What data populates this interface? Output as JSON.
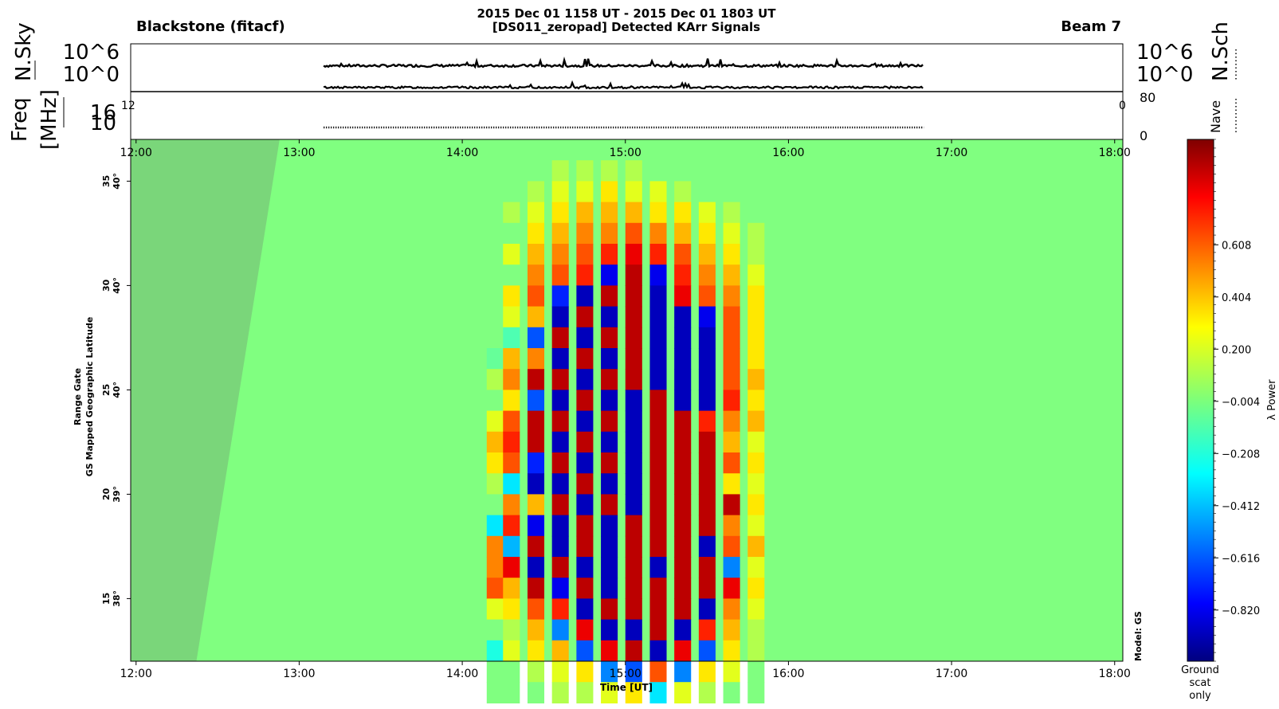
{
  "header": {
    "station": "Blackstone  (fitacf)",
    "title_line1": "2015 Dec 01 1158 UT - 2015 Dec 01 1803 UT",
    "title_line2": "[DS011_zeropad] Detected KArr Signals",
    "beam": "Beam 7"
  },
  "top_panel": {
    "left_label_a": "N.Sky",
    "left_label_b": "Freq",
    "left_label_c": "[MHz]",
    "left_ticks": [
      "10^6",
      "10^0"
    ],
    "right_ticks": [
      "10^6",
      "10^0"
    ],
    "right_label": "N.Sch",
    "freq_ticks": [
      "16",
      "10"
    ],
    "nave_label": "Nave",
    "nave_ticks": [
      "80",
      "0"
    ],
    "clip_left": "12",
    "clip_right": "0"
  },
  "main_panel": {
    "ylabel_line1": "Range Gate",
    "ylabel_line2": "GS Mapped Geographic Latitude",
    "xlabel": "Time [UT]",
    "model_label": "Model: GS",
    "ground_scat_label": [
      "Ground",
      "scat",
      "only"
    ]
  },
  "colorbar": {
    "label": "λ Power",
    "ticks": [
      0.608,
      0.404,
      0.2,
      -0.004,
      -0.208,
      -0.412,
      -0.616,
      -0.82
    ],
    "tick_labels": [
      "0.608",
      "0.404",
      "0.200",
      "−0.004",
      "−0.208",
      "−0.412",
      "−0.616",
      "−0.820"
    ],
    "range": [
      -1.02,
      1.02
    ]
  },
  "chart_data": {
    "type": "heatmap",
    "x_tick_labels": [
      "12:00",
      "13:00",
      "14:00",
      "15:00",
      "16:00",
      "17:00",
      "18:00"
    ],
    "x_ticks_hours": [
      12,
      13,
      14,
      15,
      16,
      17,
      18
    ],
    "xlim_hours": [
      11.967,
      18.05
    ],
    "y_ticks": [
      {
        "gate": 35,
        "lat": "40°"
      },
      {
        "gate": 30,
        "lat": "40°"
      },
      {
        "gate": 25,
        "lat": "40°"
      },
      {
        "gate": 20,
        "lat": "39°"
      },
      {
        "gate": 15,
        "lat": "38°"
      }
    ],
    "ylim_gates": [
      12.0,
      37.0
    ],
    "signal_columns": [
      {
        "t": 14.2,
        "values": [
          0,
          0,
          0,
          0,
          0,
          0,
          0,
          0,
          0,
          -0.05,
          0.1,
          0,
          0.2,
          0.4,
          0.3,
          0.1,
          0,
          -0.3,
          0.5,
          0.5,
          0.6,
          0.2,
          0,
          -0.2,
          0,
          0
        ]
      },
      {
        "t": 14.3,
        "values": [
          0,
          0,
          0.1,
          0,
          0.2,
          0,
          0.3,
          0.2,
          -0.1,
          0.4,
          0.5,
          0.3,
          0.6,
          0.7,
          0.6,
          -0.3,
          0.5,
          0.7,
          -0.4,
          0.8,
          0.4,
          0.3,
          0.1,
          0.2,
          0,
          0
        ]
      },
      {
        "t": 14.45,
        "values": [
          0,
          0.1,
          0.2,
          0.3,
          0.4,
          0.5,
          0.6,
          0.4,
          -0.6,
          0.5,
          0.9,
          -0.6,
          0.9,
          0.9,
          -0.7,
          -0.9,
          0.4,
          -0.8,
          0.9,
          -0.9,
          0.9,
          0.6,
          0.4,
          0.3,
          0.1,
          0
        ]
      },
      {
        "t": 14.6,
        "values": [
          0.1,
          0.2,
          0.3,
          0.4,
          0.5,
          0.6,
          -0.7,
          -0.9,
          0.9,
          -0.9,
          0.9,
          -0.9,
          0.9,
          -0.9,
          0.9,
          -0.9,
          0.9,
          -0.9,
          -0.9,
          0.9,
          -0.8,
          0.7,
          -0.5,
          0.4,
          0.2,
          0.1
        ]
      },
      {
        "t": 14.75,
        "values": [
          0.1,
          0.2,
          0.4,
          0.5,
          0.6,
          0.7,
          -0.9,
          0.9,
          -0.9,
          0.9,
          -0.9,
          0.9,
          -0.9,
          0.9,
          -0.9,
          0.9,
          -0.9,
          0.9,
          0.9,
          -0.9,
          0.9,
          -0.9,
          0.8,
          -0.6,
          0.3,
          0.1
        ]
      },
      {
        "t": 14.9,
        "values": [
          0.1,
          0.3,
          0.4,
          0.5,
          0.7,
          -0.8,
          0.9,
          -0.9,
          0.9,
          -0.9,
          0.9,
          -0.9,
          0.9,
          -0.9,
          0.9,
          -0.9,
          0.9,
          -0.9,
          -0.9,
          -0.9,
          -0.9,
          0.9,
          -0.9,
          0.8,
          -0.5,
          0.2
        ]
      },
      {
        "t": 15.05,
        "values": [
          0.1,
          0.2,
          0.4,
          0.6,
          0.8,
          0.9,
          0.9,
          0.9,
          0.9,
          0.9,
          0.9,
          -0.9,
          -0.9,
          -0.9,
          -0.9,
          -0.9,
          -0.9,
          0.9,
          0.9,
          0.9,
          0.9,
          0.9,
          -0.9,
          0.9,
          -0.6,
          0.3
        ]
      },
      {
        "t": 15.2,
        "values": [
          0,
          0.2,
          0.3,
          0.5,
          0.7,
          -0.8,
          -0.9,
          -0.9,
          -0.9,
          -0.9,
          -0.9,
          0.9,
          0.9,
          0.9,
          0.9,
          0.9,
          0.9,
          0.9,
          0.9,
          -0.9,
          0.9,
          0.9,
          0.9,
          -0.9,
          0.6,
          -0.3
        ]
      },
      {
        "t": 15.35,
        "values": [
          0,
          0.1,
          0.3,
          0.4,
          0.6,
          0.7,
          0.8,
          -0.9,
          -0.9,
          -0.9,
          -0.9,
          -0.9,
          0.9,
          0.9,
          0.9,
          0.9,
          0.9,
          0.9,
          0.9,
          0.9,
          0.9,
          0.9,
          -0.9,
          0.8,
          -0.5,
          0.2
        ]
      },
      {
        "t": 15.5,
        "values": [
          0,
          0,
          0.2,
          0.3,
          0.4,
          0.5,
          0.6,
          -0.8,
          -0.9,
          -0.9,
          -0.9,
          -0.9,
          0.7,
          0.9,
          0.9,
          0.9,
          0.9,
          0.9,
          -0.9,
          0.9,
          0.9,
          -0.9,
          0.7,
          -0.6,
          0.3,
          0.1
        ]
      },
      {
        "t": 15.65,
        "values": [
          0,
          0,
          0.1,
          0.2,
          0.3,
          0.4,
          0.5,
          0.6,
          0.6,
          0.6,
          0.6,
          0.7,
          0.5,
          0.4,
          0.6,
          0.3,
          0.9,
          0.5,
          0.6,
          -0.5,
          0.8,
          0.5,
          0.4,
          0.3,
          0.2,
          0
        ]
      },
      {
        "t": 15.8,
        "values": [
          0,
          0,
          0,
          0.1,
          0.1,
          0.2,
          0.3,
          0.3,
          0.3,
          0.3,
          0.4,
          0.3,
          0.4,
          0.2,
          0.3,
          0.2,
          0.3,
          0.2,
          0.4,
          0.2,
          0.3,
          0.2,
          0.1,
          0.1,
          0,
          0
        ]
      }
    ],
    "signal_gate_start": 36,
    "ground_scatter_region": {
      "gate_start": 12,
      "gate_end": 37,
      "t_end_at_bottom": 12.37,
      "t_end_at_top": 12.88
    },
    "panels": {
      "sky_noise": {
        "t_start": 13.15,
        "t_end": 16.83
      },
      "search_noise": {
        "t_start": 13.15,
        "t_end": 16.83
      },
      "nave": {
        "t_start": 13.15,
        "t_end": 16.83
      }
    }
  }
}
